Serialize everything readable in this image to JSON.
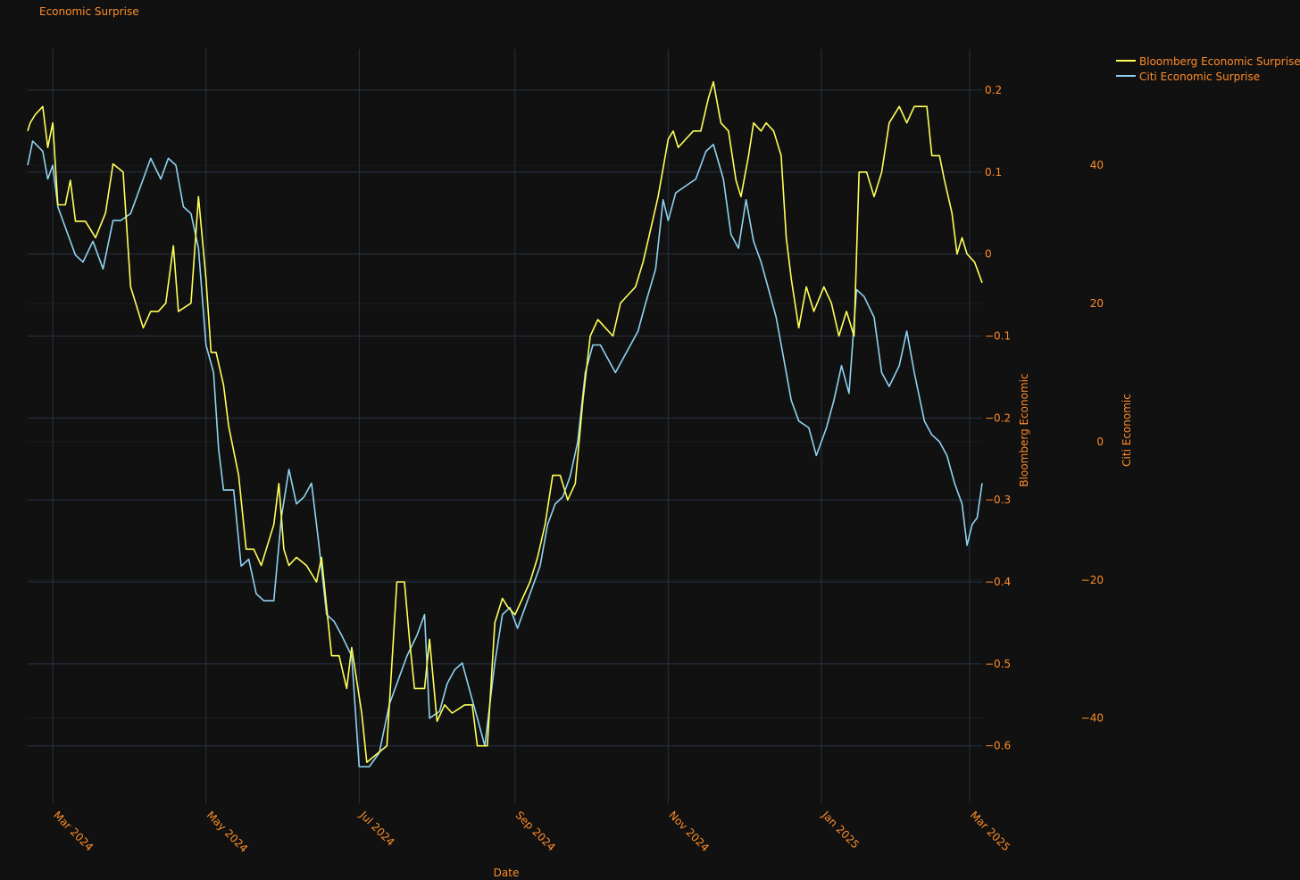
{
  "colors": {
    "background": "#111111",
    "grid": "#283442",
    "text": "#ff8c28",
    "bloomberg": "#ffff59",
    "citi": "#8fd3f0"
  },
  "chart_data": {
    "type": "line",
    "title": "Economic Surprise",
    "xlabel": "Date",
    "ylabel_left": "Bloomberg Economic",
    "ylabel_right": "Citi Economic",
    "x_range": [
      "2024-02-20",
      "2025-03-06"
    ],
    "x_ticks": [
      {
        "date": "2024-03-01",
        "label": "Mar 2024"
      },
      {
        "date": "2024-05-01",
        "label": "May 2024"
      },
      {
        "date": "2024-07-01",
        "label": "Jul 2024"
      },
      {
        "date": "2024-09-01",
        "label": "Sep 2024"
      },
      {
        "date": "2024-11-01",
        "label": "Nov 2024"
      },
      {
        "date": "2025-01-01",
        "label": "Jan 2025"
      },
      {
        "date": "2025-03-01",
        "label": "Mar 2025"
      }
    ],
    "y_left": {
      "range": [
        -0.67,
        0.25
      ],
      "ticks": [
        0.2,
        0.1,
        0,
        -0.1,
        -0.2,
        -0.3,
        -0.4,
        -0.5,
        -0.6
      ],
      "tick_labels": [
        "0.2",
        "0.1",
        "0",
        "−0.1",
        "−0.2",
        "−0.3",
        "−0.4",
        "−0.5",
        "−0.6"
      ]
    },
    "y_right": {
      "range": [
        -52.3,
        56.8
      ],
      "ticks": [
        40,
        20,
        0,
        -20,
        -40
      ],
      "tick_labels": [
        "40",
        "20",
        "0",
        "−20",
        "−40"
      ]
    },
    "grid": true,
    "legend_position": "top-right",
    "series": [
      {
        "name": "Bloomberg Economic Surprise",
        "axis": "left",
        "points": [
          [
            "2024-02-20",
            0.15
          ],
          [
            "2024-02-21",
            0.16
          ],
          [
            "2024-02-23",
            0.17
          ],
          [
            "2024-02-26",
            0.18
          ],
          [
            "2024-02-28",
            0.13
          ],
          [
            "2024-03-01",
            0.16
          ],
          [
            "2024-03-03",
            0.06
          ],
          [
            "2024-03-06",
            0.06
          ],
          [
            "2024-03-08",
            0.09
          ],
          [
            "2024-03-10",
            0.04
          ],
          [
            "2024-03-14",
            0.04
          ],
          [
            "2024-03-18",
            0.02
          ],
          [
            "2024-03-22",
            0.05
          ],
          [
            "2024-03-25",
            0.11
          ],
          [
            "2024-03-29",
            0.1
          ],
          [
            "2024-04-01",
            -0.04
          ],
          [
            "2024-04-03",
            -0.06
          ],
          [
            "2024-04-06",
            -0.09
          ],
          [
            "2024-04-09",
            -0.07
          ],
          [
            "2024-04-12",
            -0.07
          ],
          [
            "2024-04-15",
            -0.06
          ],
          [
            "2024-04-18",
            0.01
          ],
          [
            "2024-04-20",
            -0.07
          ],
          [
            "2024-04-25",
            -0.06
          ],
          [
            "2024-04-28",
            0.07
          ],
          [
            "2024-05-01",
            -0.03
          ],
          [
            "2024-05-03",
            -0.12
          ],
          [
            "2024-05-05",
            -0.12
          ],
          [
            "2024-05-08",
            -0.16
          ],
          [
            "2024-05-10",
            -0.21
          ],
          [
            "2024-05-14",
            -0.27
          ],
          [
            "2024-05-17",
            -0.36
          ],
          [
            "2024-05-20",
            -0.36
          ],
          [
            "2024-05-23",
            -0.38
          ],
          [
            "2024-05-28",
            -0.33
          ],
          [
            "2024-05-30",
            -0.28
          ],
          [
            "2024-06-01",
            -0.36
          ],
          [
            "2024-06-03",
            -0.38
          ],
          [
            "2024-06-06",
            -0.37
          ],
          [
            "2024-06-10",
            -0.38
          ],
          [
            "2024-06-14",
            -0.4
          ],
          [
            "2024-06-16",
            -0.37
          ],
          [
            "2024-06-20",
            -0.49
          ],
          [
            "2024-06-23",
            -0.49
          ],
          [
            "2024-06-26",
            -0.53
          ],
          [
            "2024-06-28",
            -0.48
          ],
          [
            "2024-07-02",
            -0.56
          ],
          [
            "2024-07-04",
            -0.62
          ],
          [
            "2024-07-08",
            -0.61
          ],
          [
            "2024-07-12",
            -0.6
          ],
          [
            "2024-07-16",
            -0.4
          ],
          [
            "2024-07-19",
            -0.4
          ],
          [
            "2024-07-21",
            -0.47
          ],
          [
            "2024-07-23",
            -0.53
          ],
          [
            "2024-07-27",
            -0.53
          ],
          [
            "2024-07-29",
            -0.47
          ],
          [
            "2024-08-01",
            -0.57
          ],
          [
            "2024-08-04",
            -0.55
          ],
          [
            "2024-08-07",
            -0.56
          ],
          [
            "2024-08-12",
            -0.55
          ],
          [
            "2024-08-15",
            -0.55
          ],
          [
            "2024-08-17",
            -0.6
          ],
          [
            "2024-08-21",
            -0.6
          ],
          [
            "2024-08-24",
            -0.45
          ],
          [
            "2024-08-27",
            -0.42
          ],
          [
            "2024-08-29",
            -0.43
          ],
          [
            "2024-09-01",
            -0.44
          ],
          [
            "2024-09-04",
            -0.42
          ],
          [
            "2024-09-07",
            -0.4
          ],
          [
            "2024-09-10",
            -0.37
          ],
          [
            "2024-09-13",
            -0.33
          ],
          [
            "2024-09-16",
            -0.27
          ],
          [
            "2024-09-19",
            -0.27
          ],
          [
            "2024-09-22",
            -0.3
          ],
          [
            "2024-09-25",
            -0.28
          ],
          [
            "2024-09-28",
            -0.18
          ],
          [
            "2024-10-01",
            -0.1
          ],
          [
            "2024-10-04",
            -0.08
          ],
          [
            "2024-10-07",
            -0.09
          ],
          [
            "2024-10-10",
            -0.1
          ],
          [
            "2024-10-13",
            -0.06
          ],
          [
            "2024-10-16",
            -0.05
          ],
          [
            "2024-10-19",
            -0.04
          ],
          [
            "2024-10-22",
            -0.01
          ],
          [
            "2024-10-25",
            0.03
          ],
          [
            "2024-10-28",
            0.07
          ],
          [
            "2024-11-01",
            0.14
          ],
          [
            "2024-11-03",
            0.15
          ],
          [
            "2024-11-05",
            0.13
          ],
          [
            "2024-11-08",
            0.14
          ],
          [
            "2024-11-11",
            0.15
          ],
          [
            "2024-11-14",
            0.15
          ],
          [
            "2024-11-17",
            0.19
          ],
          [
            "2024-11-19",
            0.21
          ],
          [
            "2024-11-22",
            0.16
          ],
          [
            "2024-11-25",
            0.15
          ],
          [
            "2024-11-28",
            0.09
          ],
          [
            "2024-11-30",
            0.07
          ],
          [
            "2024-12-03",
            0.12
          ],
          [
            "2024-12-05",
            0.16
          ],
          [
            "2024-12-08",
            0.15
          ],
          [
            "2024-12-10",
            0.16
          ],
          [
            "2024-12-13",
            0.15
          ],
          [
            "2024-12-16",
            0.12
          ],
          [
            "2024-12-18",
            0.02
          ],
          [
            "2024-12-20",
            -0.03
          ],
          [
            "2024-12-23",
            -0.09
          ],
          [
            "2024-12-26",
            -0.04
          ],
          [
            "2024-12-29",
            -0.07
          ],
          [
            "2025-01-02",
            -0.04
          ],
          [
            "2025-01-05",
            -0.06
          ],
          [
            "2025-01-08",
            -0.1
          ],
          [
            "2025-01-11",
            -0.07
          ],
          [
            "2025-01-14",
            -0.1
          ],
          [
            "2025-01-16",
            0.1
          ],
          [
            "2025-01-19",
            0.1
          ],
          [
            "2025-01-22",
            0.07
          ],
          [
            "2025-01-25",
            0.1
          ],
          [
            "2025-01-28",
            0.16
          ],
          [
            "2025-02-01",
            0.18
          ],
          [
            "2025-02-04",
            0.16
          ],
          [
            "2025-02-07",
            0.18
          ],
          [
            "2025-02-12",
            0.18
          ],
          [
            "2025-02-14",
            0.12
          ],
          [
            "2025-02-17",
            0.12
          ],
          [
            "2025-02-19",
            0.09
          ],
          [
            "2025-02-22",
            0.05
          ],
          [
            "2025-02-24",
            0.0
          ],
          [
            "2025-02-26",
            0.02
          ],
          [
            "2025-02-28",
            0.0
          ],
          [
            "2025-03-03",
            -0.01
          ],
          [
            "2025-03-06",
            -0.035
          ]
        ]
      },
      {
        "name": "Citi Economic Surprise",
        "axis": "right",
        "points": [
          [
            "2024-02-20",
            40.0
          ],
          [
            "2024-02-22",
            43.5
          ],
          [
            "2024-02-26",
            42.0
          ],
          [
            "2024-02-28",
            38.0
          ],
          [
            "2024-03-01",
            40.0
          ],
          [
            "2024-03-03",
            34.0
          ],
          [
            "2024-03-07",
            30.0
          ],
          [
            "2024-03-10",
            27.0
          ],
          [
            "2024-03-13",
            26.0
          ],
          [
            "2024-03-17",
            29.0
          ],
          [
            "2024-03-21",
            25.0
          ],
          [
            "2024-03-25",
            32.0
          ],
          [
            "2024-03-28",
            32.0
          ],
          [
            "2024-04-01",
            33.0
          ],
          [
            "2024-04-06",
            38.0
          ],
          [
            "2024-04-09",
            41.0
          ],
          [
            "2024-04-13",
            38.0
          ],
          [
            "2024-04-16",
            41.0
          ],
          [
            "2024-04-19",
            40.0
          ],
          [
            "2024-04-22",
            34.0
          ],
          [
            "2024-04-25",
            33.0
          ],
          [
            "2024-04-28",
            28.0
          ],
          [
            "2024-05-01",
            14.0
          ],
          [
            "2024-05-04",
            10.0
          ],
          [
            "2024-05-06",
            -1.0
          ],
          [
            "2024-05-08",
            -7.0
          ],
          [
            "2024-05-12",
            -7.0
          ],
          [
            "2024-05-15",
            -18.0
          ],
          [
            "2024-05-18",
            -17.0
          ],
          [
            "2024-05-21",
            -22.0
          ],
          [
            "2024-05-24",
            -23.0
          ],
          [
            "2024-05-28",
            -23.0
          ],
          [
            "2024-05-31",
            -11.0
          ],
          [
            "2024-06-03",
            -4.0
          ],
          [
            "2024-06-06",
            -9.0
          ],
          [
            "2024-06-09",
            -8.0
          ],
          [
            "2024-06-12",
            -6.0
          ],
          [
            "2024-06-15",
            -15.0
          ],
          [
            "2024-06-18",
            -25.0
          ],
          [
            "2024-06-21",
            -26.0
          ],
          [
            "2024-06-24",
            -28.0
          ],
          [
            "2024-06-28",
            -31.0
          ],
          [
            "2024-07-01",
            -47.0
          ],
          [
            "2024-07-05",
            -47.0
          ],
          [
            "2024-07-09",
            -45.0
          ],
          [
            "2024-07-13",
            -38.0
          ],
          [
            "2024-07-17",
            -34.0
          ],
          [
            "2024-07-20",
            -31.0
          ],
          [
            "2024-07-24",
            -28.0
          ],
          [
            "2024-07-27",
            -25.0
          ],
          [
            "2024-07-29",
            -40.0
          ],
          [
            "2024-08-02",
            -39.0
          ],
          [
            "2024-08-05",
            -35.0
          ],
          [
            "2024-08-08",
            -33.0
          ],
          [
            "2024-08-11",
            -32.0
          ],
          [
            "2024-08-14",
            -36.0
          ],
          [
            "2024-08-17",
            -40.0
          ],
          [
            "2024-08-20",
            -44.0
          ],
          [
            "2024-08-24",
            -32.0
          ],
          [
            "2024-08-27",
            -25.0
          ],
          [
            "2024-08-30",
            -24.0
          ],
          [
            "2024-09-02",
            -27.0
          ],
          [
            "2024-09-05",
            -24.0
          ],
          [
            "2024-09-08",
            -21.0
          ],
          [
            "2024-09-11",
            -18.0
          ],
          [
            "2024-09-14",
            -12.0
          ],
          [
            "2024-09-17",
            -9.0
          ],
          [
            "2024-09-20",
            -8.0
          ],
          [
            "2024-09-23",
            -5.0
          ],
          [
            "2024-09-26",
            0.0
          ],
          [
            "2024-09-29",
            10.0
          ],
          [
            "2024-10-02",
            14.0
          ],
          [
            "2024-10-05",
            14.0
          ],
          [
            "2024-10-08",
            12.0
          ],
          [
            "2024-10-11",
            10.0
          ],
          [
            "2024-10-14",
            12.0
          ],
          [
            "2024-10-17",
            14.0
          ],
          [
            "2024-10-20",
            16.0
          ],
          [
            "2024-10-23",
            20.0
          ],
          [
            "2024-10-27",
            25.0
          ],
          [
            "2024-10-30",
            35.0
          ],
          [
            "2024-11-01",
            32.0
          ],
          [
            "2024-11-04",
            36.0
          ],
          [
            "2024-11-08",
            37.0
          ],
          [
            "2024-11-12",
            38.0
          ],
          [
            "2024-11-16",
            42.0
          ],
          [
            "2024-11-19",
            43.0
          ],
          [
            "2024-11-23",
            38.0
          ],
          [
            "2024-11-26",
            30.0
          ],
          [
            "2024-11-29",
            28.0
          ],
          [
            "2024-12-02",
            35.0
          ],
          [
            "2024-12-05",
            29.0
          ],
          [
            "2024-12-08",
            26.0
          ],
          [
            "2024-12-11",
            22.0
          ],
          [
            "2024-12-14",
            18.0
          ],
          [
            "2024-12-17",
            12.0
          ],
          [
            "2024-12-20",
            6.0
          ],
          [
            "2024-12-23",
            3.0
          ],
          [
            "2024-12-27",
            2.0
          ],
          [
            "2024-12-30",
            -2.0
          ],
          [
            "2025-01-03",
            2.0
          ],
          [
            "2025-01-06",
            6.0
          ],
          [
            "2025-01-09",
            11.0
          ],
          [
            "2025-01-12",
            7.0
          ],
          [
            "2025-01-15",
            22.0
          ],
          [
            "2025-01-18",
            21.0
          ],
          [
            "2025-01-22",
            18.0
          ],
          [
            "2025-01-25",
            10.0
          ],
          [
            "2025-01-28",
            8.0
          ],
          [
            "2025-02-01",
            11.0
          ],
          [
            "2025-02-04",
            16.0
          ],
          [
            "2025-02-07",
            10.0
          ],
          [
            "2025-02-11",
            3.0
          ],
          [
            "2025-02-14",
            1.0
          ],
          [
            "2025-02-17",
            0.0
          ],
          [
            "2025-02-20",
            -2.0
          ],
          [
            "2025-02-23",
            -6.0
          ],
          [
            "2025-02-26",
            -9.0
          ],
          [
            "2025-02-28",
            -15.0
          ],
          [
            "2025-03-02",
            -12.0
          ],
          [
            "2025-03-04",
            -11.0
          ],
          [
            "2025-03-06",
            -6.0
          ]
        ]
      }
    ]
  }
}
